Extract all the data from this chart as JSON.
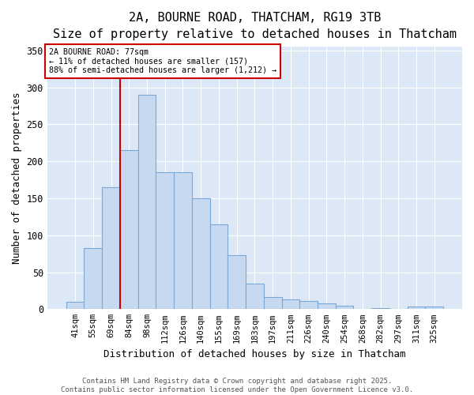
{
  "title_line1": "2A, BOURNE ROAD, THATCHAM, RG19 3TB",
  "title_line2": "Size of property relative to detached houses in Thatcham",
  "xlabel": "Distribution of detached houses by size in Thatcham",
  "ylabel": "Number of detached properties",
  "categories": [
    "41sqm",
    "55sqm",
    "69sqm",
    "84sqm",
    "98sqm",
    "112sqm",
    "126sqm",
    "140sqm",
    "155sqm",
    "169sqm",
    "183sqm",
    "197sqm",
    "211sqm",
    "226sqm",
    "240sqm",
    "254sqm",
    "268sqm",
    "282sqm",
    "297sqm",
    "311sqm",
    "325sqm"
  ],
  "values": [
    10,
    83,
    165,
    215,
    290,
    185,
    185,
    150,
    115,
    73,
    35,
    16,
    13,
    11,
    8,
    5,
    0,
    1,
    0,
    3,
    4
  ],
  "bar_color": "#c6d9f1",
  "bar_edge_color": "#7ba7d4",
  "vline_x": 2.5,
  "vline_color": "#cc0000",
  "annotation_text": "2A BOURNE ROAD: 77sqm\n← 11% of detached houses are smaller (157)\n88% of semi-detached houses are larger (1,212) →",
  "annotation_box_color": "#ffffff",
  "annotation_box_edge": "#cc0000",
  "ylim": [
    0,
    355
  ],
  "yticks": [
    0,
    50,
    100,
    150,
    200,
    250,
    300,
    350
  ],
  "fig_bg_color": "#ffffff",
  "plot_bg_color": "#dce8f5",
  "footer_text": "Contains HM Land Registry data © Crown copyright and database right 2025.\nContains public sector information licensed under the Open Government Licence v3.0.",
  "title_fontsize": 11,
  "subtitle_fontsize": 10,
  "tick_fontsize": 7.5,
  "label_fontsize": 9,
  "footer_fontsize": 6.5
}
